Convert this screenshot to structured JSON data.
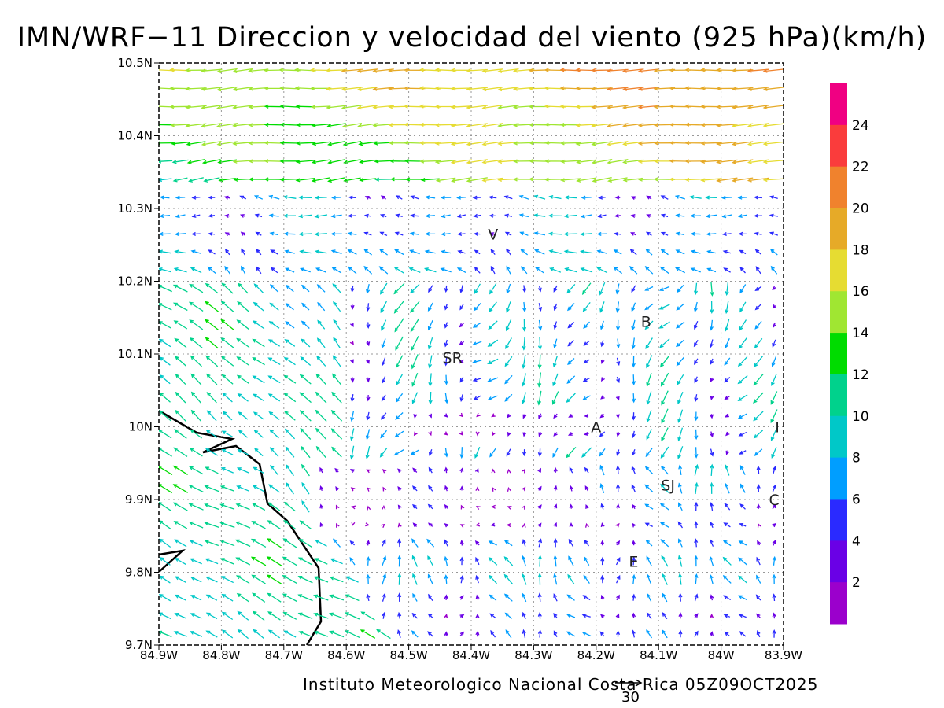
{
  "title": "IMN/WRF−11 Direccion y velocidad del viento (925 hPa)(km/h)",
  "footer": "Instituto Meteorologico Nacional Costa Rica 05Z09OCT2025",
  "reference_vector_label": "30",
  "axes": {
    "x_ticks": [
      "84.9W",
      "84.8W",
      "84.7W",
      "84.6W",
      "84.5W",
      "84.4W",
      "84.3W",
      "84.2W",
      "84.1W",
      "84W",
      "83.9W"
    ],
    "y_ticks": [
      "10.5N",
      "10.4N",
      "10.3N",
      "10.2N",
      "10.1N",
      "10N",
      "9.9N",
      "9.8N",
      "9.7N"
    ]
  },
  "cities": [
    {
      "label": "V",
      "lon": -84.365,
      "lat": 10.265
    },
    {
      "label": "B",
      "lon": -84.12,
      "lat": 10.145
    },
    {
      "label": "SR",
      "lon": -84.43,
      "lat": 10.095
    },
    {
      "label": "A",
      "lon": -84.2,
      "lat": 10.0
    },
    {
      "label": "SJ",
      "lon": -84.085,
      "lat": 9.92
    },
    {
      "label": "C",
      "lon": -83.915,
      "lat": 9.9
    },
    {
      "label": "E",
      "lon": -84.14,
      "lat": 9.815
    },
    {
      "label": "I",
      "lon": -83.91,
      "lat": 10.0
    }
  ],
  "colorbar": {
    "labels": [
      "2",
      "4",
      "6",
      "8",
      "10",
      "12",
      "14",
      "16",
      "18",
      "20",
      "22",
      "24"
    ],
    "colors": [
      "#9b00cc",
      "#6a00e6",
      "#2a2aff",
      "#009eff",
      "#00c8c8",
      "#00d28c",
      "#00dc00",
      "#a0e632",
      "#e6dc32",
      "#e6aa28",
      "#f0822d",
      "#fa3c3c",
      "#f00082"
    ]
  },
  "coastline_color": "#000000",
  "wind_regions_note_colors": {
    "weak": "#9b00cc",
    "moderate": "#00c8c8",
    "strong": "#e6aa28"
  }
}
